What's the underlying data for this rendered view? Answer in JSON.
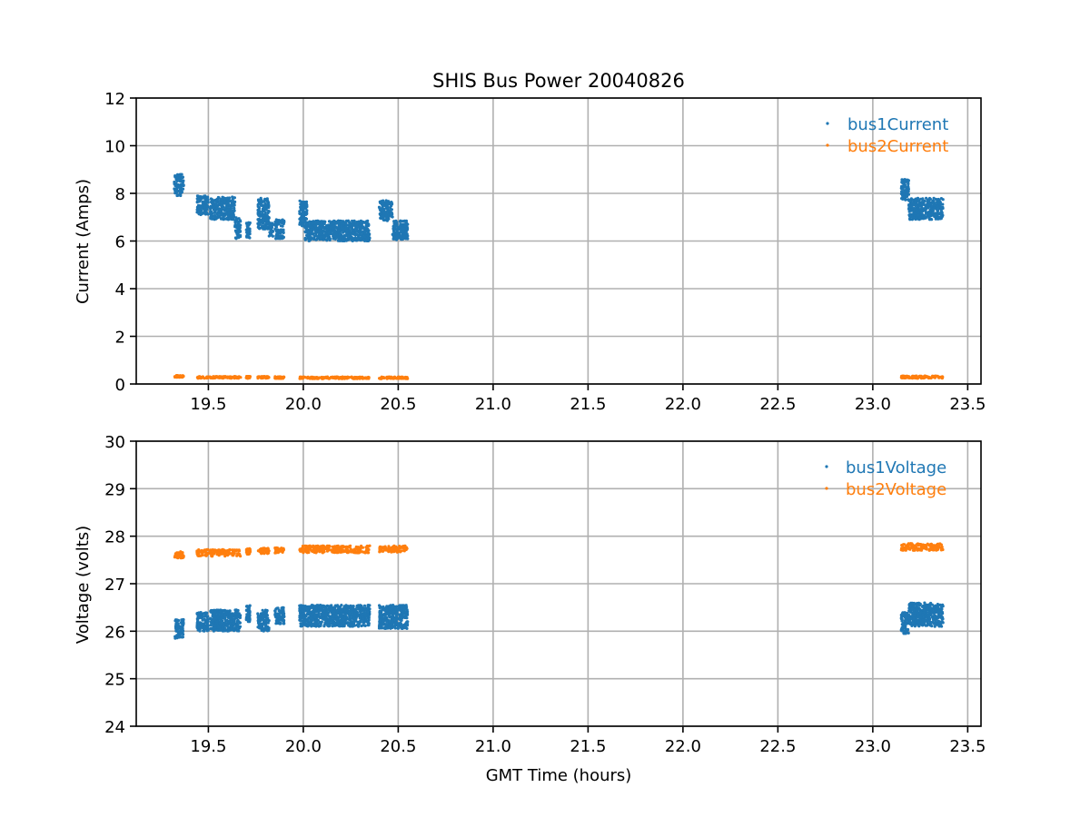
{
  "chart_data": {
    "title": "SHIS Bus Power 20040826",
    "xlabel": "GMT Time (hours)",
    "xlim": [
      19.12,
      23.57
    ],
    "xticks": [
      19.5,
      20.0,
      20.5,
      21.0,
      21.5,
      22.0,
      22.5,
      23.0,
      23.5
    ],
    "grid": true,
    "subplots": [
      {
        "type": "scatter",
        "ylabel": "Current (Amps)",
        "ylim": [
          0,
          12
        ],
        "yticks": [
          0,
          2,
          4,
          6,
          8,
          10,
          12
        ],
        "legend_position": "top-right",
        "series": [
          {
            "name": "bus1Current",
            "color": "#1f77b4",
            "segments": [
              {
                "x": [
                  19.32,
                  19.37
                ],
                "y": [
                  7.9,
                  8.8
                ]
              },
              {
                "x": [
                  19.44,
                  19.5
                ],
                "y": [
                  7.1,
                  7.9
                ]
              },
              {
                "x": [
                  19.51,
                  19.64
                ],
                "y": [
                  6.9,
                  7.85
                ]
              },
              {
                "x": [
                  19.64,
                  19.67
                ],
                "y": [
                  6.1,
                  7.0
                ]
              },
              {
                "x": [
                  19.7,
                  19.72
                ],
                "y": [
                  6.1,
                  6.8
                ]
              },
              {
                "x": [
                  19.76,
                  19.82
                ],
                "y": [
                  6.5,
                  7.8
                ]
              },
              {
                "x": [
                  19.82,
                  19.84
                ],
                "y": [
                  6.2,
                  6.8
                ]
              },
              {
                "x": [
                  19.85,
                  19.9
                ],
                "y": [
                  6.1,
                  6.9
                ]
              },
              {
                "x": [
                  19.98,
                  20.02
                ],
                "y": [
                  6.6,
                  7.7
                ]
              },
              {
                "x": [
                  20.01,
                  20.35
                ],
                "y": [
                  6.0,
                  6.85
                ]
              },
              {
                "x": [
                  20.4,
                  20.47
                ],
                "y": [
                  6.85,
                  7.7
                ]
              },
              {
                "x": [
                  20.47,
                  20.55
                ],
                "y": [
                  6.05,
                  6.85
                ]
              },
              {
                "x": [
                  23.15,
                  23.19
                ],
                "y": [
                  7.7,
                  8.6
                ]
              },
              {
                "x": [
                  23.19,
                  23.37
                ],
                "y": [
                  6.9,
                  7.8
                ]
              }
            ]
          },
          {
            "name": "bus2Current",
            "color": "#ff7f0e",
            "segments": [
              {
                "x": [
                  19.32,
                  19.37
                ],
                "y": [
                  0.28,
                  0.36
                ]
              },
              {
                "x": [
                  19.44,
                  19.67
                ],
                "y": [
                  0.24,
                  0.32
                ]
              },
              {
                "x": [
                  19.7,
                  19.72
                ],
                "y": [
                  0.24,
                  0.32
                ]
              },
              {
                "x": [
                  19.76,
                  19.82
                ],
                "y": [
                  0.24,
                  0.32
                ]
              },
              {
                "x": [
                  19.85,
                  19.9
                ],
                "y": [
                  0.23,
                  0.31
                ]
              },
              {
                "x": [
                  19.98,
                  20.35
                ],
                "y": [
                  0.22,
                  0.3
                ]
              },
              {
                "x": [
                  20.4,
                  20.55
                ],
                "y": [
                  0.22,
                  0.3
                ]
              },
              {
                "x": [
                  23.15,
                  23.37
                ],
                "y": [
                  0.24,
                  0.34
                ]
              }
            ]
          }
        ]
      },
      {
        "type": "scatter",
        "ylabel": "Voltage (volts)",
        "ylim": [
          24,
          30
        ],
        "yticks": [
          24,
          25,
          26,
          27,
          28,
          29,
          30
        ],
        "legend_position": "top-right",
        "series": [
          {
            "name": "bus1Voltage",
            "color": "#1f77b4",
            "segments": [
              {
                "x": [
                  19.32,
                  19.37
                ],
                "y": [
                  25.85,
                  26.25
                ]
              },
              {
                "x": [
                  19.44,
                  19.5
                ],
                "y": [
                  26.0,
                  26.4
                ]
              },
              {
                "x": [
                  19.51,
                  19.67
                ],
                "y": [
                  26.0,
                  26.45
                ]
              },
              {
                "x": [
                  19.7,
                  19.72
                ],
                "y": [
                  26.2,
                  26.55
                ]
              },
              {
                "x": [
                  19.76,
                  19.82
                ],
                "y": [
                  26.0,
                  26.45
                ]
              },
              {
                "x": [
                  19.85,
                  19.9
                ],
                "y": [
                  26.15,
                  26.5
                ]
              },
              {
                "x": [
                  19.98,
                  20.35
                ],
                "y": [
                  26.1,
                  26.55
                ]
              },
              {
                "x": [
                  20.4,
                  20.55
                ],
                "y": [
                  26.05,
                  26.55
                ]
              },
              {
                "x": [
                  23.15,
                  23.19
                ],
                "y": [
                  25.95,
                  26.4
                ]
              },
              {
                "x": [
                  23.19,
                  23.37
                ],
                "y": [
                  26.1,
                  26.6
                ]
              }
            ]
          },
          {
            "name": "bus2Voltage",
            "color": "#ff7f0e",
            "segments": [
              {
                "x": [
                  19.32,
                  19.37
                ],
                "y": [
                  27.54,
                  27.68
                ]
              },
              {
                "x": [
                  19.44,
                  19.67
                ],
                "y": [
                  27.58,
                  27.72
                ]
              },
              {
                "x": [
                  19.7,
                  19.72
                ],
                "y": [
                  27.62,
                  27.74
                ]
              },
              {
                "x": [
                  19.76,
                  19.82
                ],
                "y": [
                  27.63,
                  27.75
                ]
              },
              {
                "x": [
                  19.85,
                  19.9
                ],
                "y": [
                  27.64,
                  27.76
                ]
              },
              {
                "x": [
                  19.98,
                  20.35
                ],
                "y": [
                  27.65,
                  27.8
                ]
              },
              {
                "x": [
                  20.4,
                  20.55
                ],
                "y": [
                  27.66,
                  27.8
                ]
              },
              {
                "x": [
                  23.15,
                  23.37
                ],
                "y": [
                  27.7,
                  27.85
                ]
              }
            ]
          }
        ]
      }
    ]
  }
}
